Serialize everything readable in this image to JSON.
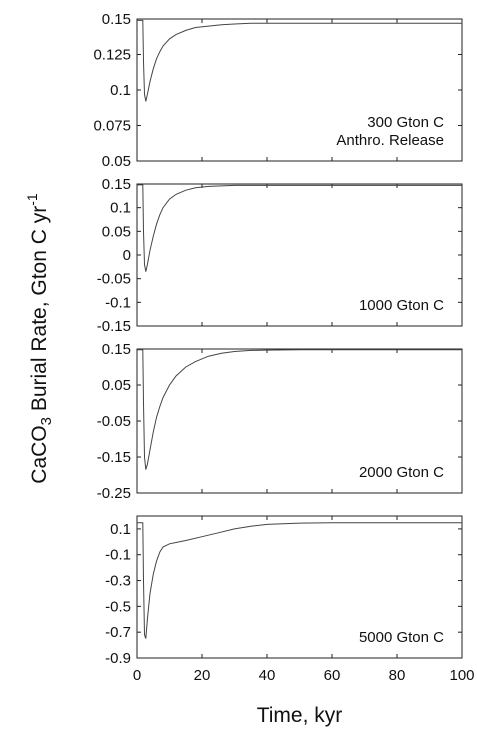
{
  "chart_data": {
    "type": "line",
    "title": "",
    "xlabel": "Time, kyr",
    "ylabel": {
      "main": "CaCO",
      "subscript": "3",
      "rest": " Burial Rate, Gton C yr",
      "superscript": "-1"
    },
    "xlim": [
      0,
      100
    ],
    "xticks": [
      "0",
      "20",
      "40",
      "60",
      "80",
      "100"
    ],
    "grid": false,
    "panels": [
      {
        "label_lines": [
          "300 Gton C",
          "Anthro. Release"
        ],
        "ylim": [
          0.05,
          0.15
        ],
        "yticks": [
          "0.15",
          "0.125",
          "0.1",
          "0.075",
          "0.05"
        ],
        "series": [
          {
            "x": [
              0,
              1.8,
              2.0,
              2.3,
              2.7,
              3.2,
              4,
              5,
              6,
              7,
              8,
              10,
              12,
              15,
              18,
              22,
              26,
              30,
              35,
              40,
              50,
              60,
              80,
              100
            ],
            "y": [
              0.149,
              0.149,
              0.12,
              0.097,
              0.092,
              0.097,
              0.106,
              0.115,
              0.122,
              0.127,
              0.131,
              0.136,
              0.139,
              0.142,
              0.144,
              0.145,
              0.146,
              0.1465,
              0.147,
              0.147,
              0.147,
              0.147,
              0.147,
              0.147
            ]
          }
        ]
      },
      {
        "label_lines": [
          "1000 Gton C"
        ],
        "ylim": [
          -0.15,
          0.15
        ],
        "yticks": [
          "0.15",
          "0.1",
          "0.05",
          "0",
          "-0.05",
          "-0.1",
          "-0.15"
        ],
        "series": [
          {
            "x": [
              0,
              1.8,
              2.0,
              2.3,
              2.7,
              3.2,
              4,
              5,
              6,
              7,
              8,
              10,
              12,
              15,
              18,
              22,
              26,
              30,
              35,
              40,
              50,
              60,
              80,
              100
            ],
            "y": [
              0.148,
              0.148,
              0.05,
              -0.02,
              -0.035,
              -0.02,
              0.01,
              0.04,
              0.065,
              0.085,
              0.1,
              0.118,
              0.128,
              0.137,
              0.142,
              0.145,
              0.146,
              0.147,
              0.147,
              0.147,
              0.147,
              0.147,
              0.147,
              0.147
            ]
          }
        ]
      },
      {
        "label_lines": [
          "2000 Gton C"
        ],
        "ylim": [
          -0.25,
          0.15
        ],
        "yticks": [
          "0.15",
          "0.05",
          "-0.05",
          "-0.15",
          "-0.25"
        ],
        "series": [
          {
            "x": [
              0,
              1.8,
              2.0,
              2.3,
              2.7,
              3.2,
              4,
              5,
              6,
              7,
              8,
              10,
              12,
              15,
              18,
              22,
              26,
              30,
              35,
              40,
              50,
              60,
              80,
              100
            ],
            "y": [
              0.148,
              0.148,
              0.0,
              -0.15,
              -0.185,
              -0.17,
              -0.13,
              -0.08,
              -0.04,
              -0.01,
              0.015,
              0.05,
              0.075,
              0.1,
              0.115,
              0.13,
              0.138,
              0.143,
              0.146,
              0.147,
              0.148,
              0.148,
              0.148,
              0.148
            ]
          }
        ]
      },
      {
        "label_lines": [
          "5000 Gton C"
        ],
        "ylim": [
          -0.9,
          0.2
        ],
        "yticks": [
          "0.1",
          "-0.1",
          "-0.3",
          "-0.5",
          "-0.7",
          "-0.9"
        ],
        "series": [
          {
            "x": [
              0,
              1.8,
              2.0,
              2.3,
              2.7,
              3.2,
              4,
              5,
              6,
              7,
              8,
              10,
              12,
              15,
              20,
              25,
              30,
              35,
              40,
              50,
              60,
              80,
              100
            ],
            "y": [
              0.148,
              0.148,
              -0.3,
              -0.72,
              -0.75,
              -0.6,
              -0.4,
              -0.25,
              -0.15,
              -0.08,
              -0.04,
              -0.015,
              -0.005,
              0.01,
              0.04,
              0.07,
              0.1,
              0.12,
              0.135,
              0.145,
              0.148,
              0.148,
              0.148
            ]
          }
        ]
      }
    ]
  }
}
